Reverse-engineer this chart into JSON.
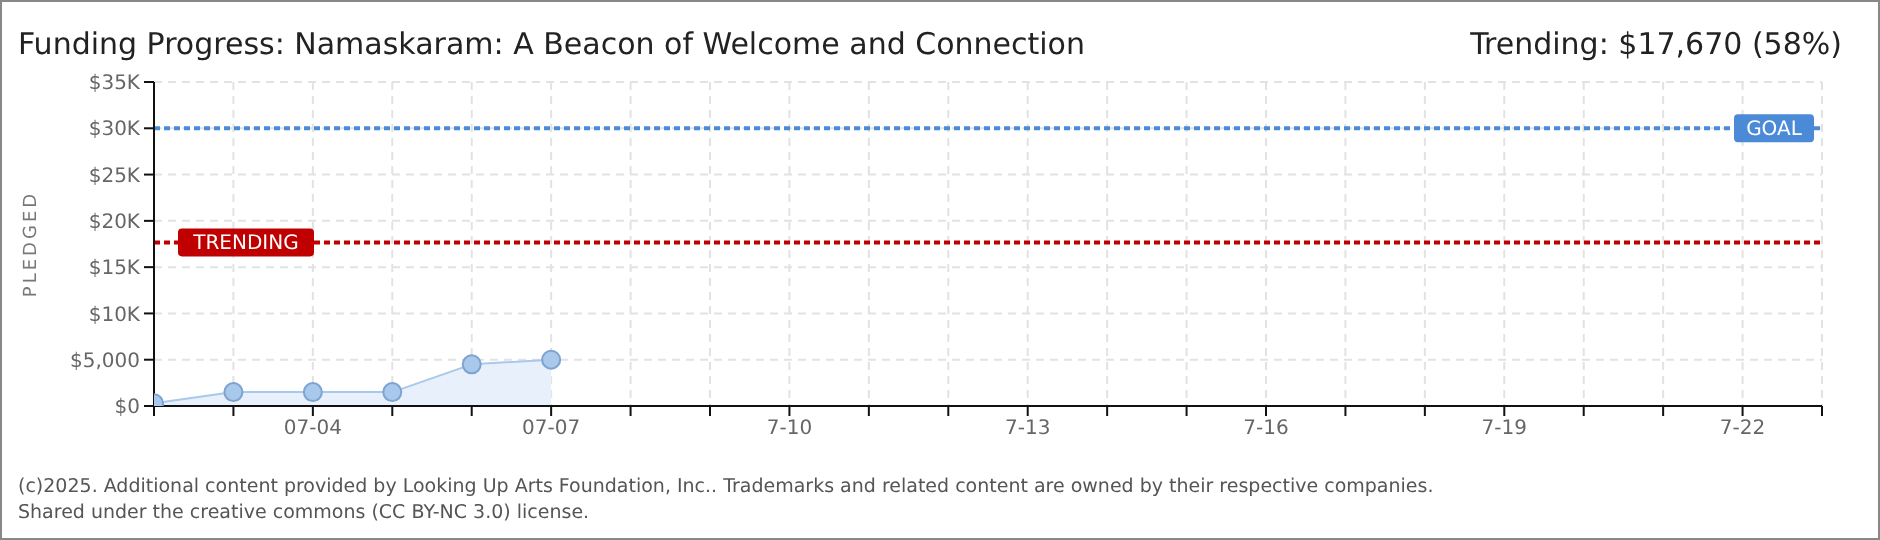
{
  "chart_data": {
    "type": "area",
    "title": "Funding Progress: Namaskaram: A Beacon of Welcome and Connection",
    "subtitle": "Trending: $17,670 (58%)",
    "ylabel": "PLEDGED",
    "x": [
      "--07-02",
      "--07-03",
      "--07-04",
      "--07-05",
      "--07-06",
      "--07-07"
    ],
    "series": [
      {
        "color": "#a8c8ec",
        "values": [
          300,
          1500,
          1500,
          1500,
          4500,
          5000
        ]
      }
    ],
    "marker": "circle",
    "line_style": "solid",
    "grid": true,
    "xlim": [
      "--07-02",
      "--07-23"
    ],
    "xticks": [
      {
        "value": "--07-02",
        "label": null
      },
      {
        "value": "--07-03",
        "label": null
      },
      {
        "value": "--07-04",
        "label": "07-04"
      },
      {
        "value": "--07-05",
        "label": null
      },
      {
        "value": "--07-06",
        "label": null
      },
      {
        "value": "--07-07",
        "label": "07-07"
      },
      {
        "value": "--07-08",
        "label": null
      },
      {
        "value": "--07-09",
        "label": null
      },
      {
        "value": "--07-10",
        "label": "7-10"
      },
      {
        "value": "--07-11",
        "label": null
      },
      {
        "value": "--07-12",
        "label": null
      },
      {
        "value": "--07-13",
        "label": "7-13"
      },
      {
        "value": "--07-14",
        "label": null
      },
      {
        "value": "--07-15",
        "label": null
      },
      {
        "value": "--07-16",
        "label": "7-16"
      },
      {
        "value": "--07-17",
        "label": null
      },
      {
        "value": "--07-18",
        "label": null
      },
      {
        "value": "--07-19",
        "label": "7-19"
      },
      {
        "value": "--07-20",
        "label": null
      },
      {
        "value": "--07-21",
        "label": null
      },
      {
        "value": "--07-22",
        "label": "7-22"
      },
      {
        "value": "--07-23",
        "label": null
      }
    ],
    "ylim": [
      0,
      35000
    ],
    "yticks": [
      {
        "value": 0,
        "label": "$0"
      },
      {
        "value": 5000,
        "label": "$5,000"
      },
      {
        "value": 10000,
        "label": "$10K"
      },
      {
        "value": 15000,
        "label": "$15K"
      },
      {
        "value": 20000,
        "label": "$20K"
      },
      {
        "value": 25000,
        "label": "$25K"
      },
      {
        "value": 30000,
        "label": "$30K"
      },
      {
        "value": 35000,
        "label": "$35K"
      }
    ],
    "ref_lines": [
      {
        "axis": "y",
        "value": 30000,
        "label": "GOAL",
        "color": "#4a8ad6",
        "line_style": "dotted"
      },
      {
        "axis": "y",
        "value": 17670,
        "label": "TRENDING",
        "color": "#c00000",
        "line_style": "dotted"
      }
    ],
    "annotations": [
      "(c)2025. Additional content provided by Looking Up Arts Foundation, Inc.. Trademarks and related content are owned by their respective companies.",
      "Shared under the creative commons (CC BY-NC 3.0) license."
    ]
  }
}
